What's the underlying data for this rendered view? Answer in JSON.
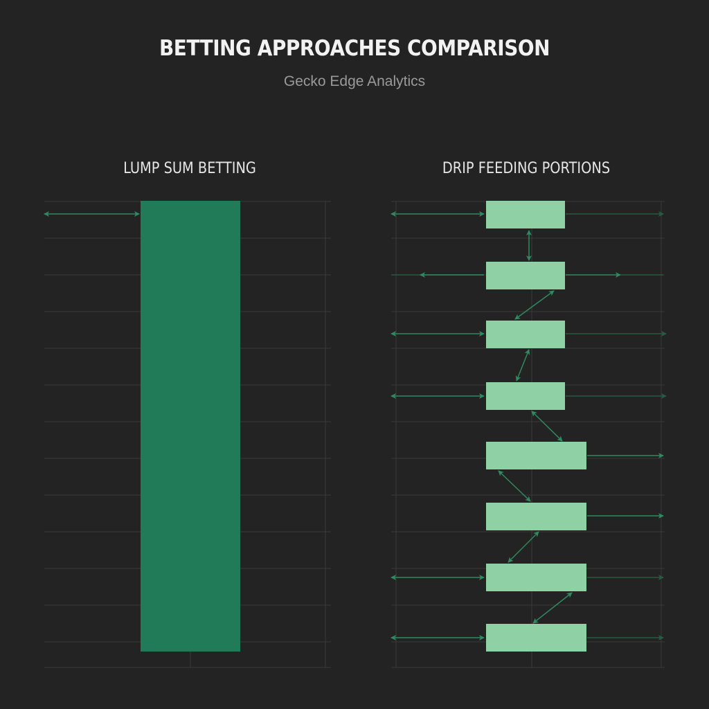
{
  "header": {
    "title": "BETTING APPROACHES COMPARISON",
    "subtitle": "Gecko Edge Analytics"
  },
  "panels": {
    "lump_sum": {
      "title": "LUMP SUM BETTING",
      "blocks": 1
    },
    "drip_feed": {
      "title": "DRIP FEEDING PORTIONS",
      "blocks": 8
    }
  },
  "colors": {
    "background": "#232323",
    "grid": "#3a3a3a",
    "lump_block": "#217a58",
    "drip_block": "#8fd1a4",
    "arrow": "#2f8a62",
    "arrow_faded": "#2a5a45"
  }
}
